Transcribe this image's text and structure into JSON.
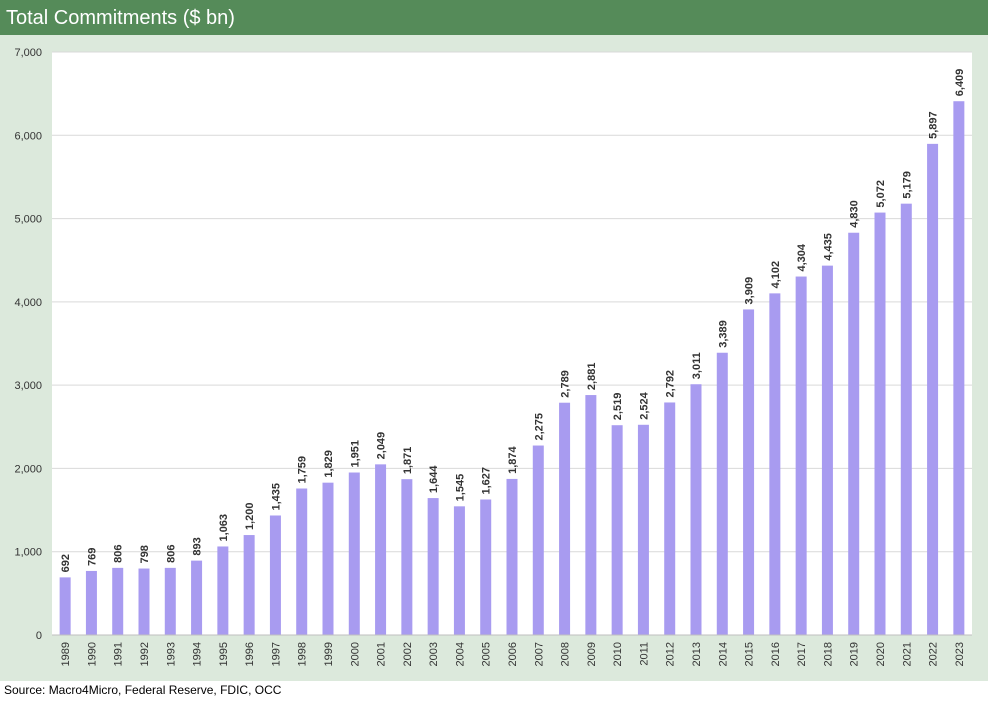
{
  "chart_data": {
    "type": "bar",
    "title": "Total Commitments ($ bn)",
    "xlabel": "",
    "ylabel": "",
    "categories": [
      "1989",
      "1990",
      "1991",
      "1992",
      "1993",
      "1994",
      "1995",
      "1996",
      "1997",
      "1998",
      "1999",
      "2000",
      "2001",
      "2002",
      "2003",
      "2004",
      "2005",
      "2006",
      "2007",
      "2008",
      "2009",
      "2010",
      "2011",
      "2012",
      "2013",
      "2014",
      "2015",
      "2016",
      "2017",
      "2018",
      "2019",
      "2020",
      "2021",
      "2022",
      "2023"
    ],
    "values": [
      692,
      769,
      806,
      798,
      806,
      893,
      1063,
      1200,
      1435,
      1759,
      1829,
      1951,
      2049,
      1871,
      1644,
      1545,
      1627,
      1874,
      2275,
      2789,
      2881,
      2519,
      2524,
      2792,
      3011,
      3389,
      3909,
      4102,
      4304,
      4435,
      4830,
      5072,
      5179,
      5897,
      6409
    ],
    "data_labels": [
      "692",
      "769",
      "806",
      "798",
      "806",
      "893",
      "1,063",
      "1,200",
      "1,435",
      "1,759",
      "1,829",
      "1,951",
      "2,049",
      "1,871",
      "1,644",
      "1,545",
      "1,627",
      "1,874",
      "2,275",
      "2,789",
      "2,881",
      "2,519",
      "2,524",
      "2,792",
      "3,011",
      "3,389",
      "3,909",
      "4,102",
      "4,304",
      "4,435",
      "4,830",
      "5,072",
      "5,179",
      "5,897",
      "6,409"
    ],
    "ylim": [
      0,
      7000
    ],
    "yticks": [
      0,
      1000,
      2000,
      3000,
      4000,
      5000,
      6000,
      7000
    ],
    "ytick_labels": [
      "0",
      "1,000",
      "2,000",
      "3,000",
      "4,000",
      "5,000",
      "6,000",
      "7,000"
    ],
    "grid": true,
    "legend": "none",
    "colors": {
      "bar": "#a89bf0",
      "title_bar": "#558b59",
      "outer_background": "#dce9dc",
      "plot_background": "#ffffff",
      "gridline": "#d9d9d9"
    }
  },
  "source": "Source: Macro4Micro, Federal Reserve, FDIC, OCC"
}
